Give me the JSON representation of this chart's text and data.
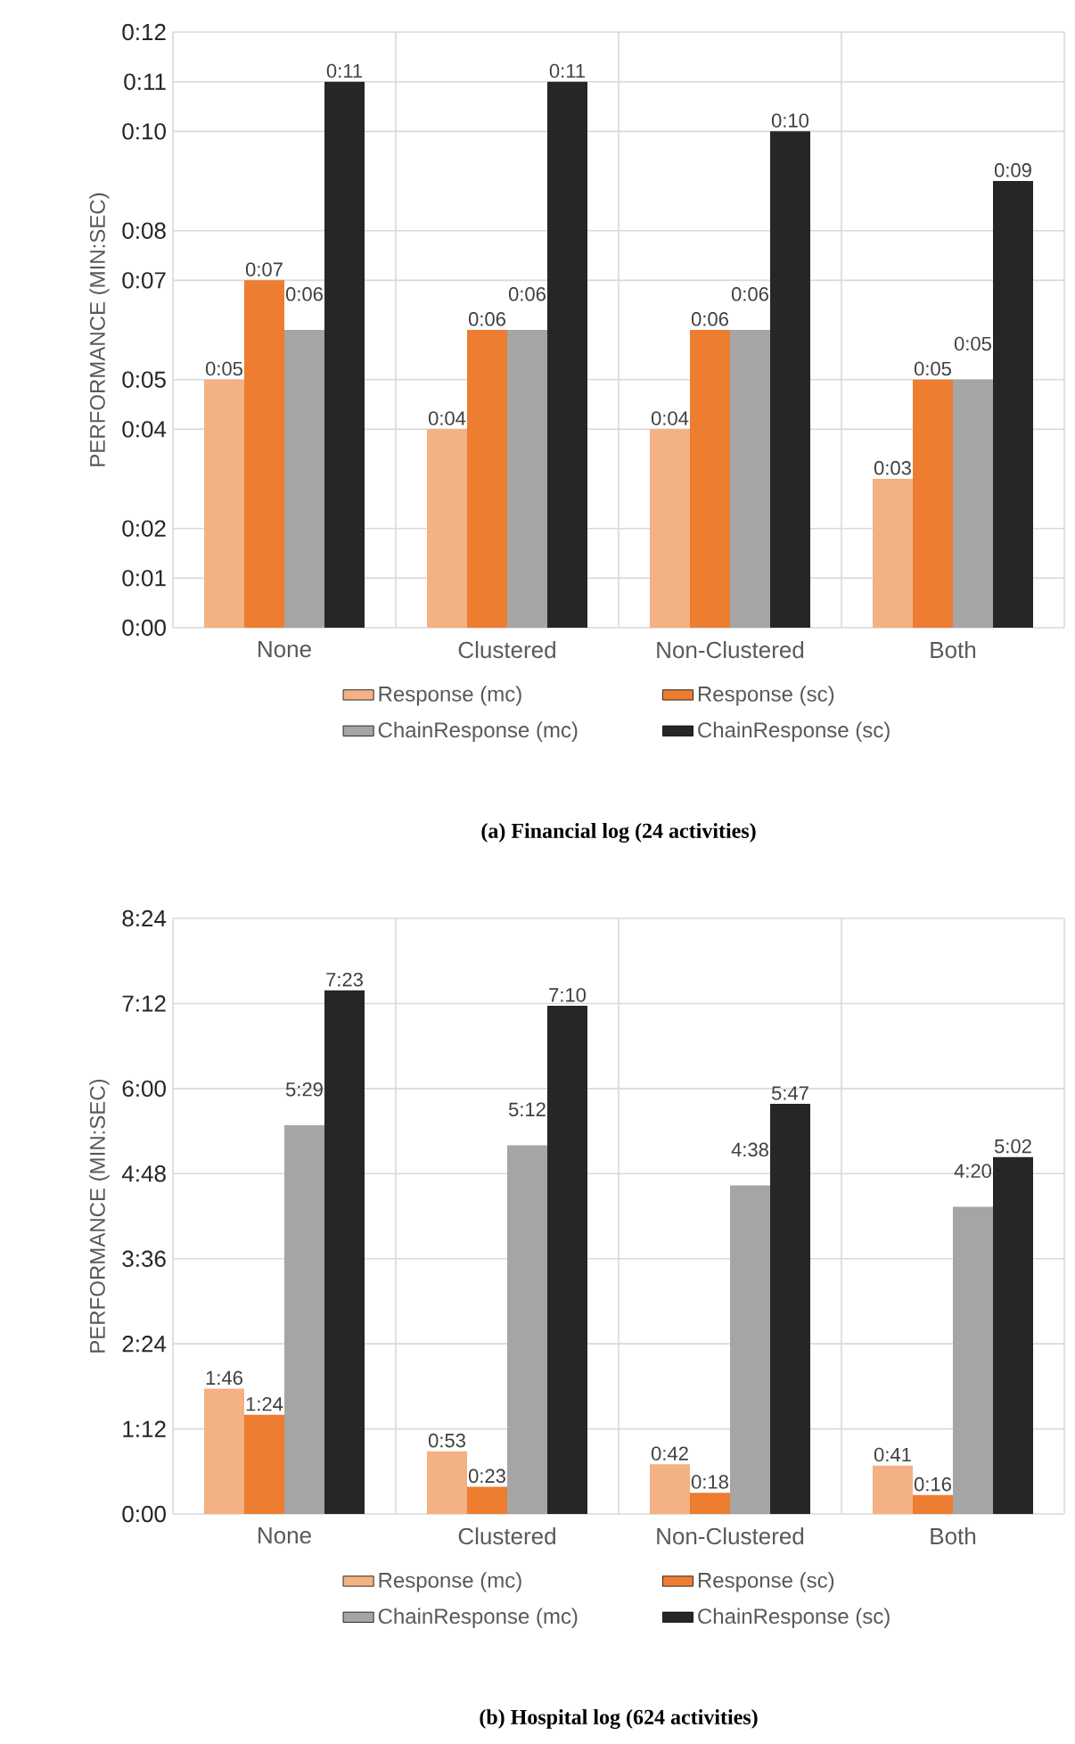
{
  "chart_data": [
    {
      "type": "bar",
      "title": "(a) Financial log (24 activities)",
      "ylabel": "PERFORMANCE (MIN:SEC)",
      "categories": [
        "None",
        "Clustered",
        "Non-Clustered",
        "Both"
      ],
      "series": [
        {
          "name": "Response (mc)",
          "color": "#f4b183",
          "values": [
            5,
            4,
            4,
            3
          ],
          "value_labels": [
            "0:05",
            "0:04",
            "0:04",
            "0:03"
          ]
        },
        {
          "name": "Response (sc)",
          "color": "#ed7d31",
          "values": [
            7,
            6,
            6,
            5
          ],
          "value_labels": [
            "0:07",
            "0:06",
            "0:06",
            "0:05"
          ]
        },
        {
          "name": "ChainResponse (mc)",
          "color": "#a5a5a5",
          "values": [
            6,
            6,
            6,
            5
          ],
          "value_labels": [
            "0:06",
            "0:06",
            "0:06",
            "0:05"
          ]
        },
        {
          "name": "ChainResponse (sc)",
          "color": "#262626",
          "values": [
            11,
            11,
            10,
            9
          ],
          "value_labels": [
            "0:11",
            "0:11",
            "0:10",
            "0:09"
          ]
        }
      ],
      "ylim": [
        0,
        12
      ],
      "yticks": [
        {
          "value": 0,
          "label": "0:00"
        },
        {
          "value": 1,
          "label": "0:01"
        },
        {
          "value": 2,
          "label": "0:02"
        },
        {
          "value": 4,
          "label": "0:04"
        },
        {
          "value": 5,
          "label": "0:05"
        },
        {
          "value": 7,
          "label": "0:07"
        },
        {
          "value": 8,
          "label": "0:08"
        },
        {
          "value": 10,
          "label": "0:10"
        },
        {
          "value": 11,
          "label": "0:11"
        },
        {
          "value": 12,
          "label": "0:12"
        }
      ],
      "grid": true,
      "legend": "bottom"
    },
    {
      "type": "bar",
      "title": "(b) Hospital log (624 activities)",
      "ylabel": "PERFORMANCE (MIN:SEC)",
      "categories": [
        "None",
        "Clustered",
        "Non-Clustered",
        "Both"
      ],
      "series": [
        {
          "name": "Response (mc)",
          "color": "#f4b183",
          "values": [
            106,
            53,
            42,
            41
          ],
          "value_labels": [
            "1:46",
            "0:53",
            "0:42",
            "0:41"
          ]
        },
        {
          "name": "Response (sc)",
          "color": "#ed7d31",
          "values": [
            84,
            23,
            18,
            16
          ],
          "value_labels": [
            "1:24",
            "0:23",
            "0:18",
            "0:16"
          ]
        },
        {
          "name": "ChainResponse (mc)",
          "color": "#a5a5a5",
          "values": [
            329,
            312,
            278,
            260
          ],
          "value_labels": [
            "5:29",
            "5:12",
            "4:38",
            "4:20"
          ]
        },
        {
          "name": "ChainResponse (sc)",
          "color": "#262626",
          "values": [
            443,
            430,
            347,
            302
          ],
          "value_labels": [
            "7:23",
            "7:10",
            "5:47",
            "5:02"
          ]
        }
      ],
      "ylim": [
        0,
        504
      ],
      "yticks": [
        {
          "value": 0,
          "label": "0:00"
        },
        {
          "value": 72,
          "label": "1:12"
        },
        {
          "value": 144,
          "label": "2:24"
        },
        {
          "value": 216,
          "label": "3:36"
        },
        {
          "value": 288,
          "label": "4:48"
        },
        {
          "value": 360,
          "label": "6:00"
        },
        {
          "value": 432,
          "label": "7:12"
        },
        {
          "value": 504,
          "label": "8:24"
        }
      ],
      "grid": true,
      "legend": "bottom"
    }
  ]
}
